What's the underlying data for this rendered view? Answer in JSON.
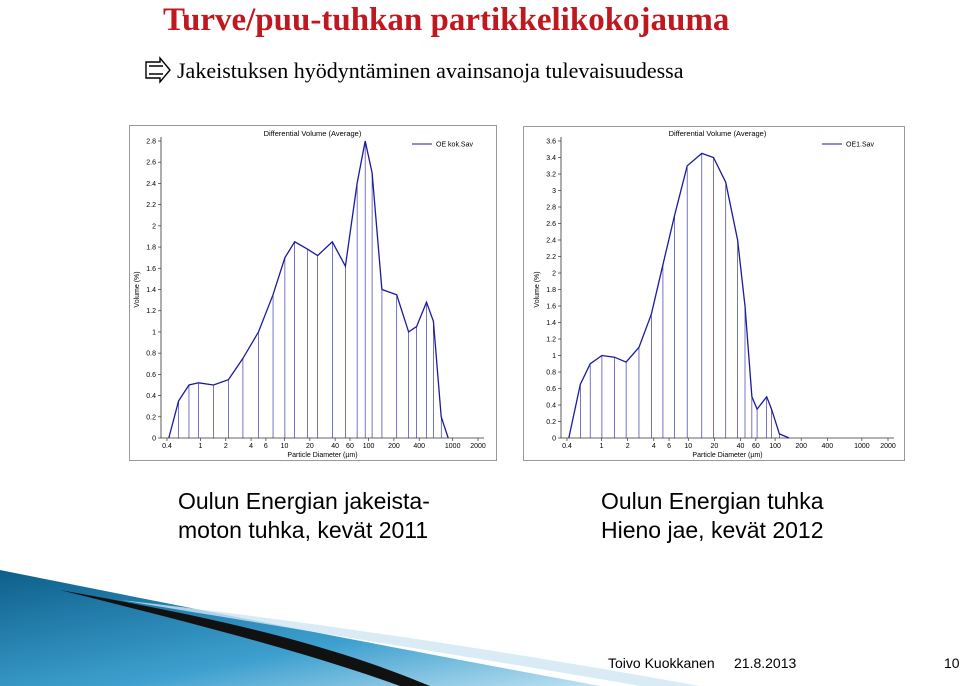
{
  "slide": {
    "title": "Turve/puu-tuhkan partikkelikokojauma",
    "bullet": "Jakeistuksen hyödyntäminen avainsanoja tulevaisuudessa",
    "captions": [
      [
        "Oulun Energian jakeista-",
        "moton tuhka, kevät 2011"
      ],
      [
        "Oulun Energian tuhka",
        "Hieno jae, kevät 2012"
      ]
    ],
    "footer": {
      "author": "Toivo Kuokkanen",
      "date": "21.8.2013",
      "page": "10"
    }
  },
  "chart_data": [
    {
      "type": "line",
      "title": "Differential Volume (Average)",
      "x_label": "Particle Diameter (µm)",
      "y_label": "Volume (%)",
      "xscale": "log",
      "xlim": [
        0.4,
        2000
      ],
      "xticks": [
        0.4,
        1,
        2,
        4,
        6,
        10,
        20,
        40,
        60,
        100,
        200,
        400,
        1000,
        2000
      ],
      "ylim": [
        0,
        2.8
      ],
      "yticks": [
        0,
        0.2,
        0.4,
        0.6,
        0.8,
        1,
        1.2,
        1.4,
        1.6,
        1.8,
        2,
        2.2,
        2.4,
        2.6,
        2.8
      ],
      "legend": "top-right",
      "x": [
        0.42,
        0.55,
        0.73,
        0.95,
        1.43,
        2.15,
        3.2,
        4.9,
        7.3,
        10.1,
        13.2,
        18.8,
        24.7,
        37,
        53,
        73,
        91,
        110,
        144,
        216,
        299,
        372,
        488,
        589,
        731,
        885
      ],
      "series": [
        {
          "name": "OE kok.Sav",
          "color": "#1a1aa0",
          "values": [
            0,
            0.35,
            0.5,
            0.52,
            0.5,
            0.55,
            0.75,
            1.0,
            1.35,
            1.7,
            1.85,
            1.78,
            1.72,
            1.85,
            1.62,
            2.4,
            2.8,
            2.5,
            1.4,
            1.35,
            1.0,
            1.05,
            1.28,
            1.1,
            0.2,
            0
          ]
        }
      ]
    },
    {
      "type": "line",
      "title": "Differential Volume (Average)",
      "x_label": "Particle Diameter (µm)",
      "y_label": "Volume (%)",
      "xscale": "log",
      "xlim": [
        0.4,
        2000
      ],
      "xticks": [
        0.4,
        1,
        2,
        4,
        6,
        10,
        20,
        40,
        60,
        100,
        200,
        400,
        1000,
        2000
      ],
      "ylim": [
        0,
        3.6
      ],
      "yticks": [
        0,
        0.2,
        0.4,
        0.6,
        0.8,
        1,
        1.2,
        1.4,
        1.6,
        1.8,
        2,
        2.2,
        2.4,
        2.6,
        2.8,
        3,
        3.2,
        3.4,
        3.6
      ],
      "legend": "top-right",
      "x": [
        0.42,
        0.57,
        0.74,
        1.01,
        1.41,
        1.92,
        2.7,
        3.75,
        5.1,
        6.95,
        9.7,
        14.3,
        19.5,
        27,
        37,
        45,
        54,
        62,
        80,
        91,
        112,
        145
      ],
      "series": [
        {
          "name": "OE1.Sav",
          "color": "#1a1aa0",
          "values": [
            0,
            0.65,
            0.9,
            1.0,
            0.98,
            0.92,
            1.1,
            1.5,
            2.1,
            2.7,
            3.3,
            3.45,
            3.4,
            3.1,
            2.4,
            1.6,
            0.5,
            0.35,
            0.5,
            0.35,
            0.05,
            0
          ]
        }
      ]
    }
  ]
}
